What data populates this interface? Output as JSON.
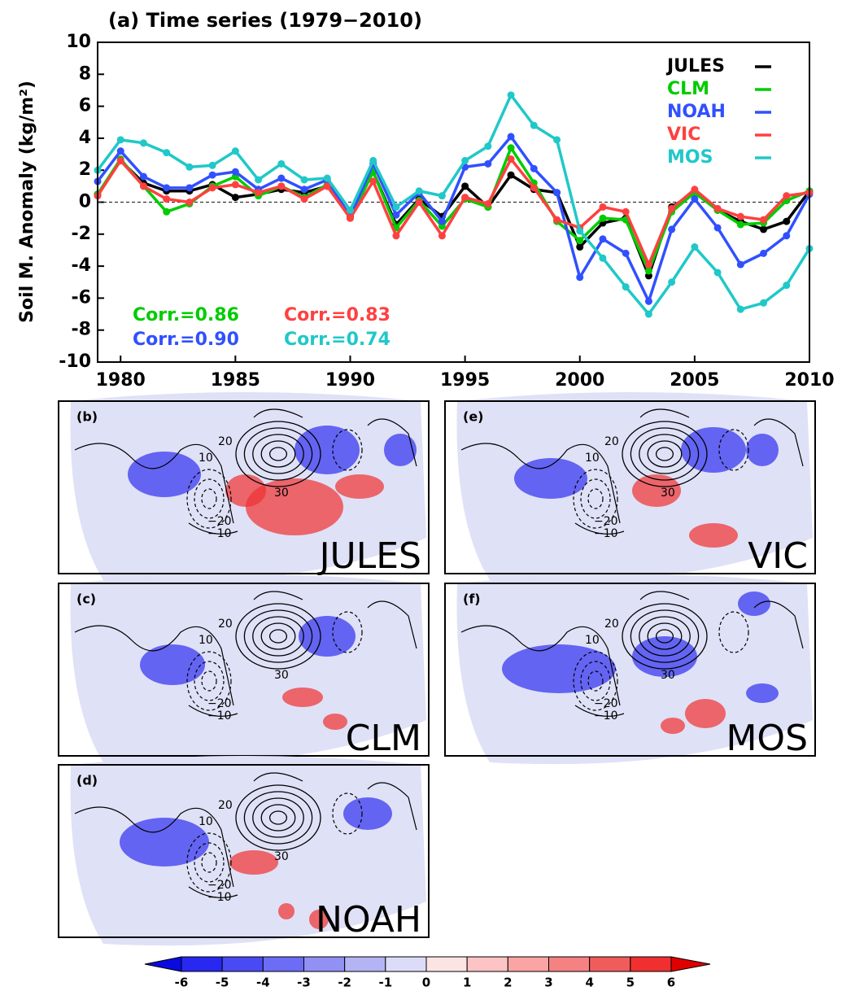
{
  "chart_data": {
    "type": "line",
    "title": "(a) Time series (1979−2010)",
    "y_label": "Soil M. Anomaly (kg/m²)",
    "x": [
      1979,
      1980,
      1981,
      1982,
      1983,
      1984,
      1985,
      1986,
      1987,
      1988,
      1989,
      1990,
      1991,
      1992,
      1993,
      1994,
      1995,
      1996,
      1997,
      1998,
      1999,
      2000,
      2001,
      2002,
      2003,
      2004,
      2005,
      2006,
      2007,
      2008,
      2009,
      2010
    ],
    "xlim": [
      1979,
      2010
    ],
    "xticks": [
      1980,
      1985,
      1990,
      1995,
      2000,
      2005,
      2010
    ],
    "ylim": [
      -10,
      10
    ],
    "yticks": [
      -10,
      -8,
      -6,
      -4,
      -2,
      0,
      2,
      4,
      6,
      8,
      10
    ],
    "reference_line": 0,
    "series": [
      {
        "name": "JULES",
        "color": "#000000",
        "values": [
          0.5,
          2.6,
          1.2,
          0.7,
          0.7,
          1.1,
          0.3,
          0.5,
          0.8,
          0.6,
          1.0,
          -0.9,
          1.9,
          -1.4,
          0.2,
          -0.9,
          1.0,
          -0.3,
          1.7,
          0.8,
          0.6,
          -2.8,
          -1.3,
          -1.0,
          -4.6,
          -0.3,
          0.6,
          -0.5,
          -1.2,
          -1.7,
          -1.2,
          0.7
        ]
      },
      {
        "name": "CLM",
        "color": "#00cc00",
        "values": [
          0.5,
          2.7,
          1.0,
          -0.6,
          -0.1,
          1.0,
          1.6,
          0.4,
          1.0,
          0.3,
          1.1,
          -1.0,
          1.9,
          -1.6,
          0.1,
          -1.5,
          0.2,
          -0.3,
          3.4,
          1.2,
          -1.2,
          -2.4,
          -1.0,
          -1.1,
          -4.3,
          -0.6,
          0.6,
          -0.5,
          -1.4,
          -1.3,
          0.1,
          0.7
        ]
      },
      {
        "name": "NOAH",
        "color": "#3050ff",
        "values": [
          1.3,
          3.2,
          1.6,
          0.9,
          0.9,
          1.7,
          1.9,
          0.8,
          1.5,
          0.8,
          1.4,
          -0.9,
          2.4,
          -0.8,
          0.6,
          -1.2,
          2.2,
          2.4,
          4.1,
          2.1,
          0.6,
          -4.7,
          -2.3,
          -3.2,
          -6.2,
          -1.7,
          0.2,
          -1.6,
          -3.9,
          -3.2,
          -2.1,
          0.5
        ]
      },
      {
        "name": "VIC",
        "color": "#ff4040",
        "values": [
          0.4,
          2.6,
          1.0,
          0.2,
          0.0,
          0.9,
          1.1,
          0.6,
          1.0,
          0.2,
          1.0,
          -1.0,
          1.3,
          -2.1,
          0.0,
          -2.1,
          0.3,
          -0.1,
          2.7,
          0.9,
          -1.1,
          -1.6,
          -0.3,
          -0.6,
          -3.9,
          -0.4,
          0.8,
          -0.4,
          -0.9,
          -1.1,
          0.4,
          0.6
        ]
      },
      {
        "name": "MOS",
        "color": "#20c8c8",
        "values": [
          2.0,
          3.9,
          3.7,
          3.1,
          2.2,
          2.3,
          3.2,
          1.4,
          2.4,
          1.4,
          1.5,
          -0.5,
          2.6,
          -0.3,
          0.7,
          0.4,
          2.6,
          3.5,
          6.7,
          4.8,
          3.9,
          -1.8,
          -3.5,
          -5.3,
          -7.0,
          -5.0,
          -2.8,
          -4.4,
          -6.7,
          -6.3,
          -5.2,
          -2.9
        ]
      }
    ],
    "annotations": [
      {
        "text": "Corr.=0.86",
        "color": "#00cc00"
      },
      {
        "text": "Corr.=0.83",
        "color": "#ff4040"
      },
      {
        "text": "Corr.=0.90",
        "color": "#3050ff"
      },
      {
        "text": "Corr.=0.74",
        "color": "#20c8c8"
      }
    ]
  },
  "maps": [
    {
      "label": "(b)",
      "model": "JULES",
      "contour_labels": [
        "20",
        "10",
        "30",
        "−20",
        "−10"
      ]
    },
    {
      "label": "(c)",
      "model": "CLM",
      "contour_labels": [
        "20",
        "10",
        "30",
        "−20",
        "−10"
      ]
    },
    {
      "label": "(d)",
      "model": "NOAH",
      "contour_labels": [
        "20",
        "10",
        "30",
        "−20",
        "−10"
      ]
    },
    {
      "label": "(e)",
      "model": "VIC",
      "contour_labels": [
        "20",
        "10",
        "30",
        "−20",
        "−10"
      ]
    },
    {
      "label": "(f)",
      "model": "MOS",
      "contour_labels": [
        "20",
        "10",
        "30",
        "−20",
        "−10"
      ]
    }
  ],
  "colorbar": {
    "ticks": [
      -6,
      -5,
      -4,
      -3,
      -2,
      -1,
      0,
      1,
      2,
      3,
      4,
      5,
      6
    ],
    "colors": [
      "#0a0ae0",
      "#2828f0",
      "#4a4af5",
      "#6c6cf5",
      "#9090f5",
      "#b4b4f5",
      "#dcdcf8",
      "#fde4e4",
      "#fcc4c4",
      "#faa4a4",
      "#f58282",
      "#f05c5c",
      "#f03030",
      "#e00000"
    ]
  }
}
